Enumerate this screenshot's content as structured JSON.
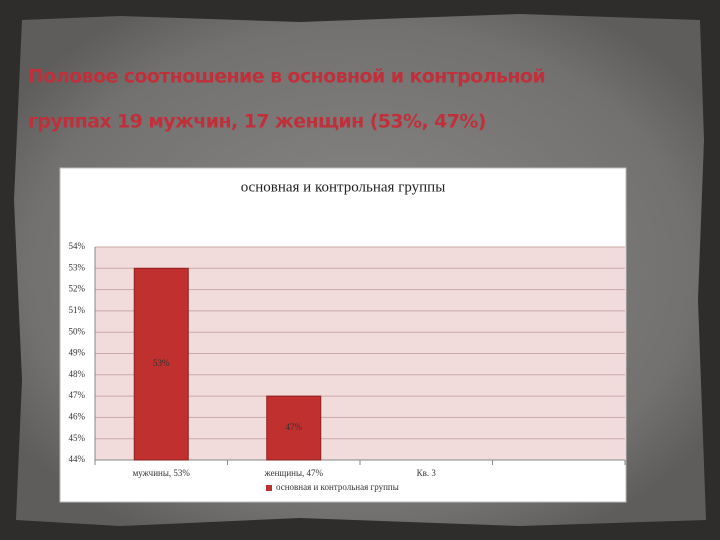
{
  "slide": {
    "title_lines": [
      "Половое соотношение в основной и контрольной",
      "группах 19 мужчин, 17 женщин (53%, 47%)"
    ]
  },
  "chart_data": {
    "type": "bar",
    "title": "основная и контрольная группы",
    "categories": [
      "мужчины, 53%",
      "женщины, 47%",
      "Кв. 3",
      null
    ],
    "series": [
      {
        "name": "основная и контрольная группы",
        "color": "#c0302f",
        "values": [
          53,
          47,
          null,
          null
        ],
        "value_labels": [
          "53%",
          "47%",
          null,
          null
        ]
      }
    ],
    "ylim": [
      44,
      54
    ],
    "yticks": [
      {
        "value": 44,
        "label": "44%"
      },
      {
        "value": 45,
        "label": "45%"
      },
      {
        "value": 46,
        "label": "46%"
      },
      {
        "value": 47,
        "label": "47%"
      },
      {
        "value": 48,
        "label": "48%"
      },
      {
        "value": 49,
        "label": "49%"
      },
      {
        "value": 50,
        "label": "50%"
      },
      {
        "value": 51,
        "label": "51%"
      },
      {
        "value": 52,
        "label": "52%"
      },
      {
        "value": 53,
        "label": "53%"
      },
      {
        "value": 54,
        "label": "54%"
      }
    ],
    "grid": true,
    "legend": "bottom"
  }
}
